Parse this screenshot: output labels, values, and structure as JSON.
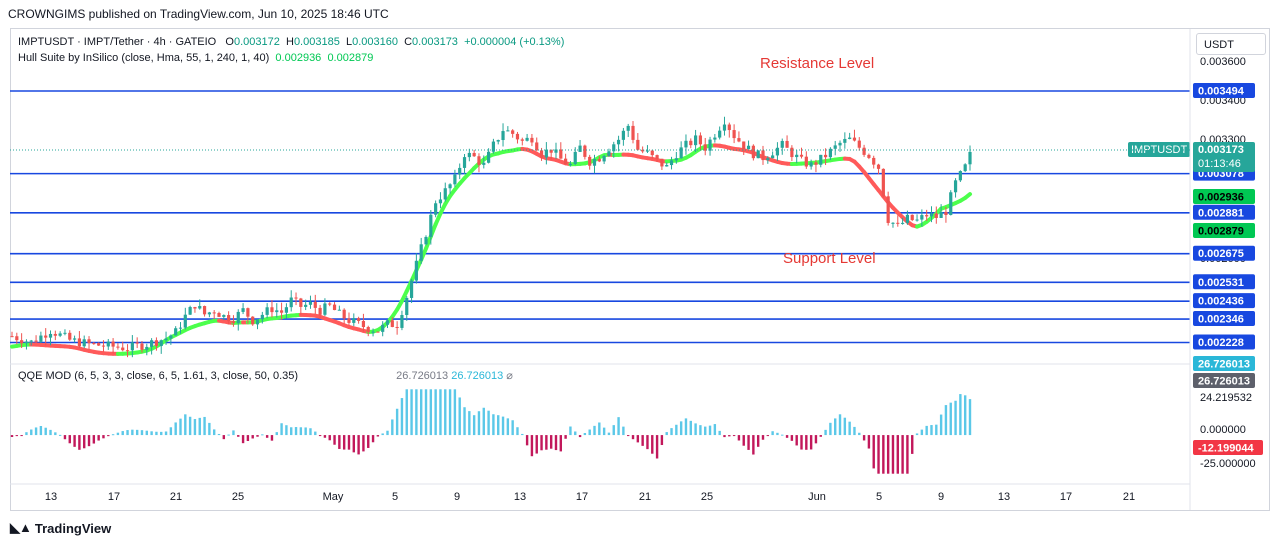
{
  "publisher_line": "CROWNGIMS published on TradingView.com, Jun 10, 2025 18:46 UTC",
  "header": {
    "symbol_line": "IMPTUSDT · IMPT/Tether · 4h · GATEIO",
    "o_label": "O",
    "o_value": "0.003172",
    "h_label": "H",
    "h_value": "0.003185",
    "l_label": "L",
    "l_value": "0.003160",
    "c_label": "C",
    "c_value": "0.003173",
    "change": "+0.000004 (+0.13%)",
    "hull_name": "Hull Suite by InSilico (close, Hma, 55, 1, 240, 1, 40)",
    "hull_v1": "0.002936",
    "hull_v2": "0.002879"
  },
  "currency_button": "USDT",
  "annotations": {
    "resistance": "Resistance Level",
    "support": "Support Level"
  },
  "colors": {
    "level_line": "#1848e0",
    "bull": "#26a69a",
    "bear": "#ef5350",
    "hull_up": "#4cff4c",
    "hull_down": "#ff5a5a",
    "qqe_pos": "#5bc8e8",
    "qqe_neg": "#c2185b"
  },
  "qqe": {
    "label": "QQE MOD (6, 5, 3, 3, close, 6, 5, 1.61, 3, close, 50, 0.35)",
    "v1": "26.726013",
    "v2": "26.726013",
    "icon": "slash-circle-icon"
  },
  "footer_brand": "TradingView",
  "chart_data": {
    "type": "candlestick",
    "symbol": "IMPTUSDT",
    "timeframe": "4h",
    "x_ticks": [
      "13",
      "17",
      "21",
      "25",
      "May",
      "5",
      "9",
      "13",
      "17",
      "21",
      "25",
      "Jun",
      "5",
      "9",
      "13",
      "17",
      "21"
    ],
    "y_ticks": [
      "0.003600",
      "0.003400",
      "0.003300",
      "0.002600",
      "0.002200"
    ],
    "ylim": [
      0.00215,
      0.00365
    ],
    "levels": [
      "0.003494",
      "0.003078",
      "0.002881",
      "0.002675",
      "0.002531",
      "0.002436",
      "0.002346",
      "0.002228"
    ],
    "last_price": {
      "symbol": "IMPTUSDT",
      "value": "0.003173",
      "countdown": "01:13:46"
    },
    "hull_labels": [
      "0.002936",
      "0.002879"
    ],
    "price_path": [
      [
        0,
        0.00226
      ],
      [
        4,
        0.00223
      ],
      [
        8,
        0.00229
      ],
      [
        12,
        0.00224
      ],
      [
        16,
        0.00222
      ],
      [
        20,
        0.00221
      ],
      [
        24,
        0.0022
      ],
      [
        28,
        0.00222
      ],
      [
        32,
        0.00225
      ],
      [
        34,
        0.00228
      ],
      [
        36,
        0.00236
      ],
      [
        38,
        0.00242
      ],
      [
        40,
        0.00237
      ],
      [
        42,
        0.00239
      ],
      [
        44,
        0.00236
      ],
      [
        46,
        0.00235
      ],
      [
        48,
        0.00239
      ],
      [
        50,
        0.00234
      ],
      [
        52,
        0.00237
      ],
      [
        54,
        0.0024
      ],
      [
        56,
        0.00238
      ],
      [
        58,
        0.00244
      ],
      [
        60,
        0.00241
      ],
      [
        62,
        0.00242
      ],
      [
        64,
        0.00239
      ],
      [
        66,
        0.00241
      ],
      [
        68,
        0.00237
      ],
      [
        70,
        0.00234
      ],
      [
        72,
        0.00232
      ],
      [
        74,
        0.0023
      ],
      [
        76,
        0.00229
      ],
      [
        78,
        0.00232
      ],
      [
        80,
        0.00232
      ],
      [
        82,
        0.00246
      ],
      [
        84,
        0.00262
      ],
      [
        86,
        0.00278
      ],
      [
        88,
        0.00294
      ],
      [
        90,
        0.00299
      ],
      [
        92,
        0.00305
      ],
      [
        94,
        0.00318
      ],
      [
        96,
        0.00316
      ],
      [
        98,
        0.00312
      ],
      [
        100,
        0.00322
      ],
      [
        102,
        0.0033
      ],
      [
        104,
        0.00328
      ],
      [
        106,
        0.00324
      ],
      [
        108,
        0.00326
      ],
      [
        110,
        0.00318
      ],
      [
        112,
        0.0032
      ],
      [
        114,
        0.00315
      ],
      [
        116,
        0.00312
      ],
      [
        118,
        0.00321
      ],
      [
        120,
        0.00314
      ],
      [
        122,
        0.00316
      ],
      [
        124,
        0.00321
      ],
      [
        126,
        0.00325
      ],
      [
        128,
        0.00332
      ],
      [
        130,
        0.0032
      ],
      [
        132,
        0.00318
      ],
      [
        134,
        0.00314
      ],
      [
        136,
        0.00311
      ],
      [
        138,
        0.00318
      ],
      [
        140,
        0.00322
      ],
      [
        142,
        0.00325
      ],
      [
        144,
        0.00321
      ],
      [
        146,
        0.00328
      ],
      [
        148,
        0.00335
      ],
      [
        150,
        0.00327
      ],
      [
        152,
        0.00322
      ],
      [
        154,
        0.00318
      ],
      [
        156,
        0.00316
      ],
      [
        158,
        0.00319
      ],
      [
        160,
        0.00322
      ],
      [
        162,
        0.00318
      ],
      [
        164,
        0.00314
      ],
      [
        166,
        0.00312
      ],
      [
        168,
        0.00315
      ],
      [
        170,
        0.00319
      ],
      [
        172,
        0.00323
      ],
      [
        174,
        0.00325
      ],
      [
        176,
        0.00321
      ],
      [
        178,
        0.00317
      ],
      [
        180,
        0.00311
      ],
      [
        182,
        0.00285
      ],
      [
        184,
        0.00281
      ],
      [
        186,
        0.00285
      ],
      [
        188,
        0.00284
      ],
      [
        190,
        0.00287
      ],
      [
        192,
        0.00286
      ],
      [
        194,
        0.00289
      ],
      [
        196,
        0.00303
      ],
      [
        198,
        0.00311
      ],
      [
        199,
        0.00317
      ]
    ],
    "qqe_ylim": [
      -30,
      35
    ],
    "qqe_y_ticks": [
      "26.726013",
      "26.726013",
      "24.219532",
      "0.000000",
      "-12.199044",
      "-25.000000"
    ]
  }
}
